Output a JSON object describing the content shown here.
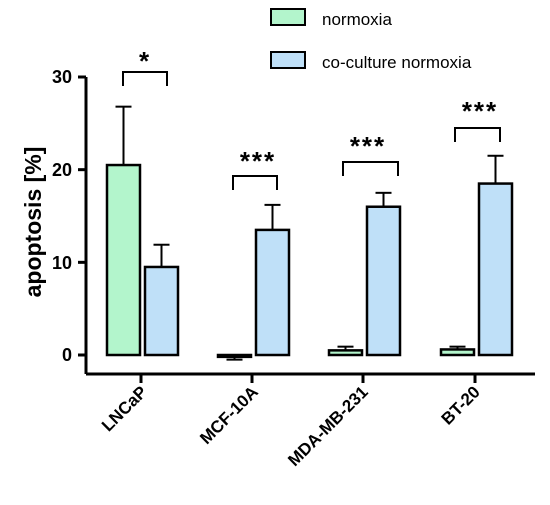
{
  "chart_data": {
    "type": "bar",
    "categories": [
      "LNCaP",
      "MCF-10A",
      "MDA-MB-231",
      "BT-20"
    ],
    "series": [
      {
        "name": "normoxia",
        "values": [
          20.5,
          -0.2,
          0.5,
          0.6
        ],
        "errors": [
          6.3,
          0.3,
          0.4,
          0.3
        ]
      },
      {
        "name": "co-culture normoxia",
        "values": [
          9.5,
          13.5,
          16.0,
          18.5
        ],
        "errors": [
          2.4,
          2.7,
          1.5,
          3.0
        ]
      }
    ],
    "significance": [
      "*",
      "***",
      "***",
      "***"
    ],
    "ylabel": "apoptosis [%]",
    "xlabel": "",
    "ylim": [
      -2,
      30
    ],
    "yticks": [
      "0",
      "10",
      "20",
      "30"
    ],
    "legend_position": "top-right",
    "colors": {
      "normoxia": "#b3f5cc",
      "co_culture": "#bfe0f8",
      "stroke": "#000000"
    }
  }
}
